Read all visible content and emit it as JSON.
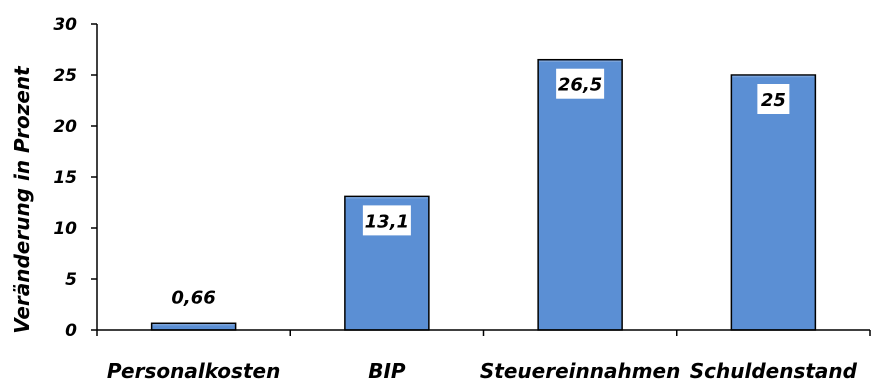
{
  "chart_data": {
    "type": "bar",
    "categories": [
      "Personalkosten",
      "BIP",
      "Steuereinnahmen",
      "Schuldenstand"
    ],
    "values": [
      0.66,
      13.1,
      26.5,
      25
    ],
    "value_labels": [
      "0,66",
      "13,1",
      "26,5",
      "25"
    ],
    "ylabel": "Veränderung in Prozent",
    "ylim": [
      0,
      30
    ],
    "yticks": [
      0,
      5,
      10,
      15,
      20,
      25,
      30
    ],
    "grid": false,
    "legend": "none",
    "colors": {
      "bar_fill": "#5b8fd4",
      "bar_top": "#7aa3da",
      "bar_stroke": "#000000",
      "label_box": "#ffffff",
      "axis": "#000000"
    }
  }
}
